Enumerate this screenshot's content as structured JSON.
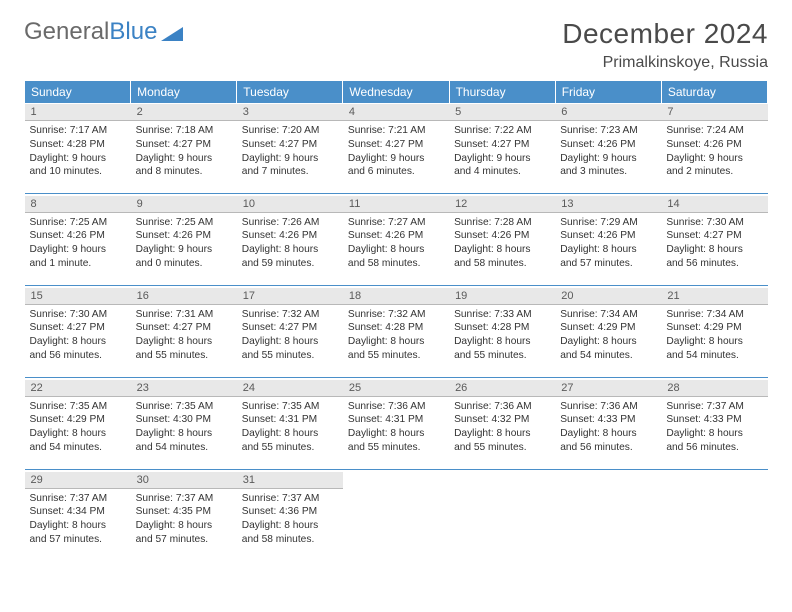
{
  "logo": {
    "text1": "General",
    "text2": "Blue"
  },
  "title": "December 2024",
  "location": "Primalkinskoye, Russia",
  "colors": {
    "header_bg": "#4a8fc9",
    "header_fg": "#ffffff",
    "daynum_bg": "#e8e8e8",
    "daynum_fg": "#5a5a5a",
    "rule": "#4a8fc9",
    "logo_gray": "#6a6a6a",
    "logo_blue": "#3b82c4"
  },
  "weekdays": [
    "Sunday",
    "Monday",
    "Tuesday",
    "Wednesday",
    "Thursday",
    "Friday",
    "Saturday"
  ],
  "days": [
    {
      "n": 1,
      "sunrise": "7:17 AM",
      "sunset": "4:28 PM",
      "daylight": "9 hours and 10 minutes."
    },
    {
      "n": 2,
      "sunrise": "7:18 AM",
      "sunset": "4:27 PM",
      "daylight": "9 hours and 8 minutes."
    },
    {
      "n": 3,
      "sunrise": "7:20 AM",
      "sunset": "4:27 PM",
      "daylight": "9 hours and 7 minutes."
    },
    {
      "n": 4,
      "sunrise": "7:21 AM",
      "sunset": "4:27 PM",
      "daylight": "9 hours and 6 minutes."
    },
    {
      "n": 5,
      "sunrise": "7:22 AM",
      "sunset": "4:27 PM",
      "daylight": "9 hours and 4 minutes."
    },
    {
      "n": 6,
      "sunrise": "7:23 AM",
      "sunset": "4:26 PM",
      "daylight": "9 hours and 3 minutes."
    },
    {
      "n": 7,
      "sunrise": "7:24 AM",
      "sunset": "4:26 PM",
      "daylight": "9 hours and 2 minutes."
    },
    {
      "n": 8,
      "sunrise": "7:25 AM",
      "sunset": "4:26 PM",
      "daylight": "9 hours and 1 minute."
    },
    {
      "n": 9,
      "sunrise": "7:25 AM",
      "sunset": "4:26 PM",
      "daylight": "9 hours and 0 minutes."
    },
    {
      "n": 10,
      "sunrise": "7:26 AM",
      "sunset": "4:26 PM",
      "daylight": "8 hours and 59 minutes."
    },
    {
      "n": 11,
      "sunrise": "7:27 AM",
      "sunset": "4:26 PM",
      "daylight": "8 hours and 58 minutes."
    },
    {
      "n": 12,
      "sunrise": "7:28 AM",
      "sunset": "4:26 PM",
      "daylight": "8 hours and 58 minutes."
    },
    {
      "n": 13,
      "sunrise": "7:29 AM",
      "sunset": "4:26 PM",
      "daylight": "8 hours and 57 minutes."
    },
    {
      "n": 14,
      "sunrise": "7:30 AM",
      "sunset": "4:27 PM",
      "daylight": "8 hours and 56 minutes."
    },
    {
      "n": 15,
      "sunrise": "7:30 AM",
      "sunset": "4:27 PM",
      "daylight": "8 hours and 56 minutes."
    },
    {
      "n": 16,
      "sunrise": "7:31 AM",
      "sunset": "4:27 PM",
      "daylight": "8 hours and 55 minutes."
    },
    {
      "n": 17,
      "sunrise": "7:32 AM",
      "sunset": "4:27 PM",
      "daylight": "8 hours and 55 minutes."
    },
    {
      "n": 18,
      "sunrise": "7:32 AM",
      "sunset": "4:28 PM",
      "daylight": "8 hours and 55 minutes."
    },
    {
      "n": 19,
      "sunrise": "7:33 AM",
      "sunset": "4:28 PM",
      "daylight": "8 hours and 55 minutes."
    },
    {
      "n": 20,
      "sunrise": "7:34 AM",
      "sunset": "4:29 PM",
      "daylight": "8 hours and 54 minutes."
    },
    {
      "n": 21,
      "sunrise": "7:34 AM",
      "sunset": "4:29 PM",
      "daylight": "8 hours and 54 minutes."
    },
    {
      "n": 22,
      "sunrise": "7:35 AM",
      "sunset": "4:29 PM",
      "daylight": "8 hours and 54 minutes."
    },
    {
      "n": 23,
      "sunrise": "7:35 AM",
      "sunset": "4:30 PM",
      "daylight": "8 hours and 54 minutes."
    },
    {
      "n": 24,
      "sunrise": "7:35 AM",
      "sunset": "4:31 PM",
      "daylight": "8 hours and 55 minutes."
    },
    {
      "n": 25,
      "sunrise": "7:36 AM",
      "sunset": "4:31 PM",
      "daylight": "8 hours and 55 minutes."
    },
    {
      "n": 26,
      "sunrise": "7:36 AM",
      "sunset": "4:32 PM",
      "daylight": "8 hours and 55 minutes."
    },
    {
      "n": 27,
      "sunrise": "7:36 AM",
      "sunset": "4:33 PM",
      "daylight": "8 hours and 56 minutes."
    },
    {
      "n": 28,
      "sunrise": "7:37 AM",
      "sunset": "4:33 PM",
      "daylight": "8 hours and 56 minutes."
    },
    {
      "n": 29,
      "sunrise": "7:37 AM",
      "sunset": "4:34 PM",
      "daylight": "8 hours and 57 minutes."
    },
    {
      "n": 30,
      "sunrise": "7:37 AM",
      "sunset": "4:35 PM",
      "daylight": "8 hours and 57 minutes."
    },
    {
      "n": 31,
      "sunrise": "7:37 AM",
      "sunset": "4:36 PM",
      "daylight": "8 hours and 58 minutes."
    }
  ],
  "labels": {
    "sunrise": "Sunrise:",
    "sunset": "Sunset:",
    "daylight": "Daylight:"
  }
}
